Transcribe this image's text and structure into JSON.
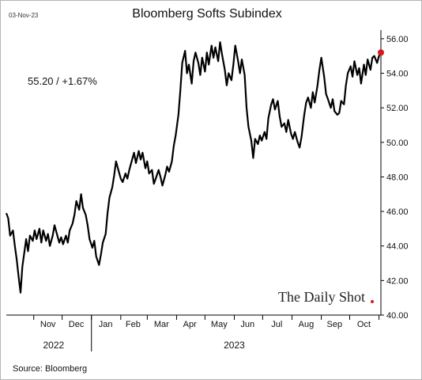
{
  "header": {
    "date": "03-Nov-23",
    "title": "Bloomberg Softs Subindex"
  },
  "annotation": "55.20  /  +1.67%",
  "source": "Source: Bloomberg",
  "brand": "The Daily Shot",
  "colors": {
    "line": "#000000",
    "last_point": "#d7191c",
    "axis": "#000000"
  },
  "chart_data": {
    "type": "line",
    "title": "Bloomberg Softs Subindex",
    "xlabel": "",
    "ylabel": "",
    "y_ticks": [
      "40.00",
      "42.00",
      "44.00",
      "46.00",
      "48.00",
      "50.00",
      "52.00",
      "54.00",
      "56.00"
    ],
    "ylim": [
      40,
      56.5
    ],
    "y_axis_side": "right",
    "grid": false,
    "x_range": [
      "2022-10-03",
      "2023-11-03"
    ],
    "months": [
      {
        "label": "Nov",
        "center": "2022-11-16"
      },
      {
        "label": "Dec",
        "center": "2022-12-16"
      },
      {
        "label": "Jan",
        "center": "2023-01-16"
      },
      {
        "label": "Feb",
        "center": "2023-02-14"
      },
      {
        "label": "Mar",
        "center": "2023-03-16"
      },
      {
        "label": "Apr",
        "center": "2023-04-15"
      },
      {
        "label": "May",
        "center": "2023-05-16"
      },
      {
        "label": "Jun",
        "center": "2023-06-15"
      },
      {
        "label": "Jul",
        "center": "2023-07-16"
      },
      {
        "label": "Aug",
        "center": "2023-08-16"
      },
      {
        "label": "Sep",
        "center": "2023-09-15"
      },
      {
        "label": "Oct",
        "center": "2023-10-16"
      }
    ],
    "month_separators": [
      "2022-11-01",
      "2022-12-01",
      "2023-01-01",
      "2023-02-01",
      "2023-03-01",
      "2023-04-01",
      "2023-05-01",
      "2023-06-01",
      "2023-07-01",
      "2023-08-01",
      "2023-09-01",
      "2023-10-01",
      "2023-11-01"
    ],
    "years": [
      {
        "label": "2022",
        "center": "2022-11-22"
      },
      {
        "label": "2023",
        "center": "2023-06-01"
      }
    ],
    "year_separator": "2023-01-01",
    "series": [
      {
        "points": [
          [
            "2022-10-03",
            45.9
          ],
          [
            "2022-10-05",
            45.6
          ],
          [
            "2022-10-07",
            44.6
          ],
          [
            "2022-10-10",
            44.9
          ],
          [
            "2022-10-12",
            44.0
          ],
          [
            "2022-10-14",
            43.2
          ],
          [
            "2022-10-16",
            42.2
          ],
          [
            "2022-10-18",
            41.3
          ],
          [
            "2022-10-20",
            42.8
          ],
          [
            "2022-10-22",
            43.6
          ],
          [
            "2022-10-24",
            44.4
          ],
          [
            "2022-10-26",
            43.7
          ],
          [
            "2022-10-28",
            44.6
          ],
          [
            "2022-10-31",
            44.3
          ],
          [
            "2022-11-02",
            44.9
          ],
          [
            "2022-11-04",
            44.4
          ],
          [
            "2022-11-07",
            45.0
          ],
          [
            "2022-11-09",
            44.2
          ],
          [
            "2022-11-11",
            44.9
          ],
          [
            "2022-11-14",
            44.3
          ],
          [
            "2022-11-16",
            44.7
          ],
          [
            "2022-11-18",
            44.0
          ],
          [
            "2022-11-21",
            44.6
          ],
          [
            "2022-11-23",
            45.2
          ],
          [
            "2022-11-25",
            44.8
          ],
          [
            "2022-11-28",
            44.2
          ],
          [
            "2022-11-30",
            44.5
          ],
          [
            "2022-12-02",
            44.1
          ],
          [
            "2022-12-05",
            44.6
          ],
          [
            "2022-12-07",
            44.2
          ],
          [
            "2022-12-09",
            44.9
          ],
          [
            "2022-12-12",
            45.3
          ],
          [
            "2022-12-14",
            45.8
          ],
          [
            "2022-12-16",
            46.6
          ],
          [
            "2022-12-19",
            46.1
          ],
          [
            "2022-12-21",
            47.0
          ],
          [
            "2022-12-23",
            46.2
          ],
          [
            "2022-12-26",
            45.8
          ],
          [
            "2022-12-28",
            45.2
          ],
          [
            "2022-12-30",
            44.4
          ],
          [
            "2023-01-02",
            43.9
          ],
          [
            "2023-01-04",
            44.3
          ],
          [
            "2023-01-06",
            43.4
          ],
          [
            "2023-01-09",
            42.9
          ],
          [
            "2023-01-11",
            43.5
          ],
          [
            "2023-01-13",
            44.2
          ],
          [
            "2023-01-16",
            44.7
          ],
          [
            "2023-01-18",
            45.9
          ],
          [
            "2023-01-20",
            46.8
          ],
          [
            "2023-01-23",
            47.4
          ],
          [
            "2023-01-25",
            48.1
          ],
          [
            "2023-01-27",
            48.9
          ],
          [
            "2023-01-30",
            48.3
          ],
          [
            "2023-02-01",
            47.9
          ],
          [
            "2023-02-03",
            47.7
          ],
          [
            "2023-02-06",
            48.2
          ],
          [
            "2023-02-08",
            47.9
          ],
          [
            "2023-02-10",
            48.4
          ],
          [
            "2023-02-13",
            49.0
          ],
          [
            "2023-02-15",
            49.4
          ],
          [
            "2023-02-17",
            48.8
          ],
          [
            "2023-02-20",
            49.5
          ],
          [
            "2023-02-22",
            49.0
          ],
          [
            "2023-02-24",
            49.4
          ],
          [
            "2023-02-27",
            48.5
          ],
          [
            "2023-03-01",
            48.9
          ],
          [
            "2023-03-03",
            48.2
          ],
          [
            "2023-03-06",
            48.4
          ],
          [
            "2023-03-08",
            47.6
          ],
          [
            "2023-03-10",
            47.9
          ],
          [
            "2023-03-13",
            48.4
          ],
          [
            "2023-03-15",
            48.0
          ],
          [
            "2023-03-17",
            47.5
          ],
          [
            "2023-03-20",
            48.1
          ],
          [
            "2023-03-22",
            48.6
          ],
          [
            "2023-03-24",
            48.3
          ],
          [
            "2023-03-27",
            48.9
          ],
          [
            "2023-03-29",
            49.8
          ],
          [
            "2023-03-31",
            50.4
          ],
          [
            "2023-04-03",
            51.6
          ],
          [
            "2023-04-05",
            53.0
          ],
          [
            "2023-04-07",
            54.6
          ],
          [
            "2023-04-10",
            55.3
          ],
          [
            "2023-04-12",
            54.0
          ],
          [
            "2023-04-14",
            54.5
          ],
          [
            "2023-04-17",
            53.4
          ],
          [
            "2023-04-19",
            54.7
          ],
          [
            "2023-04-21",
            55.2
          ],
          [
            "2023-04-24",
            54.6
          ],
          [
            "2023-04-26",
            53.9
          ],
          [
            "2023-04-28",
            54.9
          ],
          [
            "2023-05-01",
            54.1
          ],
          [
            "2023-05-03",
            55.2
          ],
          [
            "2023-05-05",
            54.5
          ],
          [
            "2023-05-08",
            55.6
          ],
          [
            "2023-05-10",
            54.9
          ],
          [
            "2023-05-12",
            55.5
          ],
          [
            "2023-05-15",
            54.7
          ],
          [
            "2023-05-17",
            55.8
          ],
          [
            "2023-05-19",
            55.1
          ],
          [
            "2023-05-22",
            54.2
          ],
          [
            "2023-05-24",
            53.3
          ],
          [
            "2023-05-26",
            54.0
          ],
          [
            "2023-05-29",
            53.6
          ],
          [
            "2023-05-31",
            54.5
          ],
          [
            "2023-06-02",
            55.6
          ],
          [
            "2023-06-05",
            54.7
          ],
          [
            "2023-06-07",
            54.0
          ],
          [
            "2023-06-09",
            54.8
          ],
          [
            "2023-06-12",
            53.9
          ],
          [
            "2023-06-14",
            52.0
          ],
          [
            "2023-06-16",
            50.9
          ],
          [
            "2023-06-19",
            50.1
          ],
          [
            "2023-06-21",
            49.1
          ],
          [
            "2023-06-23",
            50.2
          ],
          [
            "2023-06-26",
            49.9
          ],
          [
            "2023-06-28",
            50.4
          ],
          [
            "2023-06-30",
            50.1
          ],
          [
            "2023-07-03",
            50.6
          ],
          [
            "2023-07-05",
            50.2
          ],
          [
            "2023-07-07",
            51.4
          ],
          [
            "2023-07-10",
            52.2
          ],
          [
            "2023-07-12",
            52.5
          ],
          [
            "2023-07-14",
            51.9
          ],
          [
            "2023-07-17",
            52.4
          ],
          [
            "2023-07-19",
            51.5
          ],
          [
            "2023-07-21",
            50.9
          ],
          [
            "2023-07-24",
            51.1
          ],
          [
            "2023-07-26",
            50.6
          ],
          [
            "2023-07-28",
            51.3
          ],
          [
            "2023-07-31",
            50.5
          ],
          [
            "2023-08-02",
            50.2
          ],
          [
            "2023-08-04",
            50.6
          ],
          [
            "2023-08-07",
            50.0
          ],
          [
            "2023-08-09",
            49.7
          ],
          [
            "2023-08-11",
            50.3
          ],
          [
            "2023-08-14",
            51.6
          ],
          [
            "2023-08-16",
            52.3
          ],
          [
            "2023-08-18",
            52.6
          ],
          [
            "2023-08-21",
            52.0
          ],
          [
            "2023-08-23",
            52.9
          ],
          [
            "2023-08-25",
            52.3
          ],
          [
            "2023-08-28",
            53.3
          ],
          [
            "2023-08-30",
            54.2
          ],
          [
            "2023-09-01",
            54.9
          ],
          [
            "2023-09-04",
            53.8
          ],
          [
            "2023-09-06",
            52.8
          ],
          [
            "2023-09-08",
            52.5
          ],
          [
            "2023-09-11",
            52.0
          ],
          [
            "2023-09-13",
            52.5
          ],
          [
            "2023-09-15",
            51.8
          ],
          [
            "2023-09-18",
            51.6
          ],
          [
            "2023-09-20",
            51.7
          ],
          [
            "2023-09-22",
            52.4
          ],
          [
            "2023-09-25",
            52.2
          ],
          [
            "2023-09-27",
            53.3
          ],
          [
            "2023-09-29",
            54.0
          ],
          [
            "2023-10-02",
            54.4
          ],
          [
            "2023-10-04",
            53.8
          ],
          [
            "2023-10-06",
            54.7
          ],
          [
            "2023-10-09",
            53.9
          ],
          [
            "2023-10-11",
            54.3
          ],
          [
            "2023-10-13",
            53.4
          ],
          [
            "2023-10-16",
            54.5
          ],
          [
            "2023-10-18",
            53.9
          ],
          [
            "2023-10-20",
            54.8
          ],
          [
            "2023-10-23",
            54.2
          ],
          [
            "2023-10-25",
            54.9
          ],
          [
            "2023-10-27",
            55.0
          ],
          [
            "2023-10-30",
            54.6
          ],
          [
            "2023-11-01",
            55.0
          ],
          [
            "2023-11-03",
            55.2
          ]
        ],
        "last_value": 55.2
      }
    ]
  }
}
